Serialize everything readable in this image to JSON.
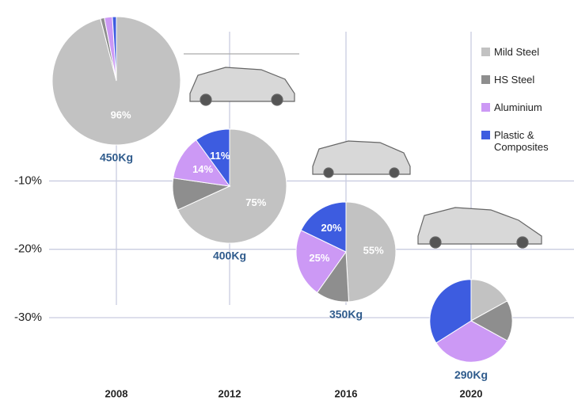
{
  "chart_data": {
    "type": "pie",
    "categories": [
      "2008",
      "2012",
      "2016",
      "2020"
    ],
    "series": [
      {
        "name": "Mild Steel",
        "color": "#c2c2c2"
      },
      {
        "name": "HS Steel",
        "color": "#8e8e8e"
      },
      {
        "name": "Aluminium",
        "color": "#cc99f5"
      },
      {
        "name": "Plastic & Composites",
        "color": "#3d5ce0"
      }
    ],
    "values": [
      [
        96,
        1,
        2,
        1
      ],
      [
        75,
        10,
        14,
        11
      ],
      [
        55,
        12,
        25,
        20
      ],
      [
        17,
        16,
        33,
        34
      ]
    ],
    "value_labels": [
      [
        "96%",
        null,
        null,
        null
      ],
      [
        "75%",
        null,
        "14%",
        "11%"
      ],
      [
        "55%",
        null,
        "25%",
        "20%"
      ],
      [
        null,
        null,
        null,
        null
      ]
    ],
    "weights": [
      {
        "value": 450,
        "label": "450Kg"
      },
      {
        "value": 400,
        "label": "400Kg"
      },
      {
        "value": 350,
        "label": "350Kg"
      },
      {
        "value": 290,
        "label": "290Kg"
      }
    ],
    "ylim": [
      -38,
      13
    ],
    "yticks": [
      {
        "value": -10,
        "label": "-10%"
      },
      {
        "value": -20,
        "label": "-20%"
      },
      {
        "value": -30,
        "label": "-30%"
      }
    ],
    "grid": true
  }
}
